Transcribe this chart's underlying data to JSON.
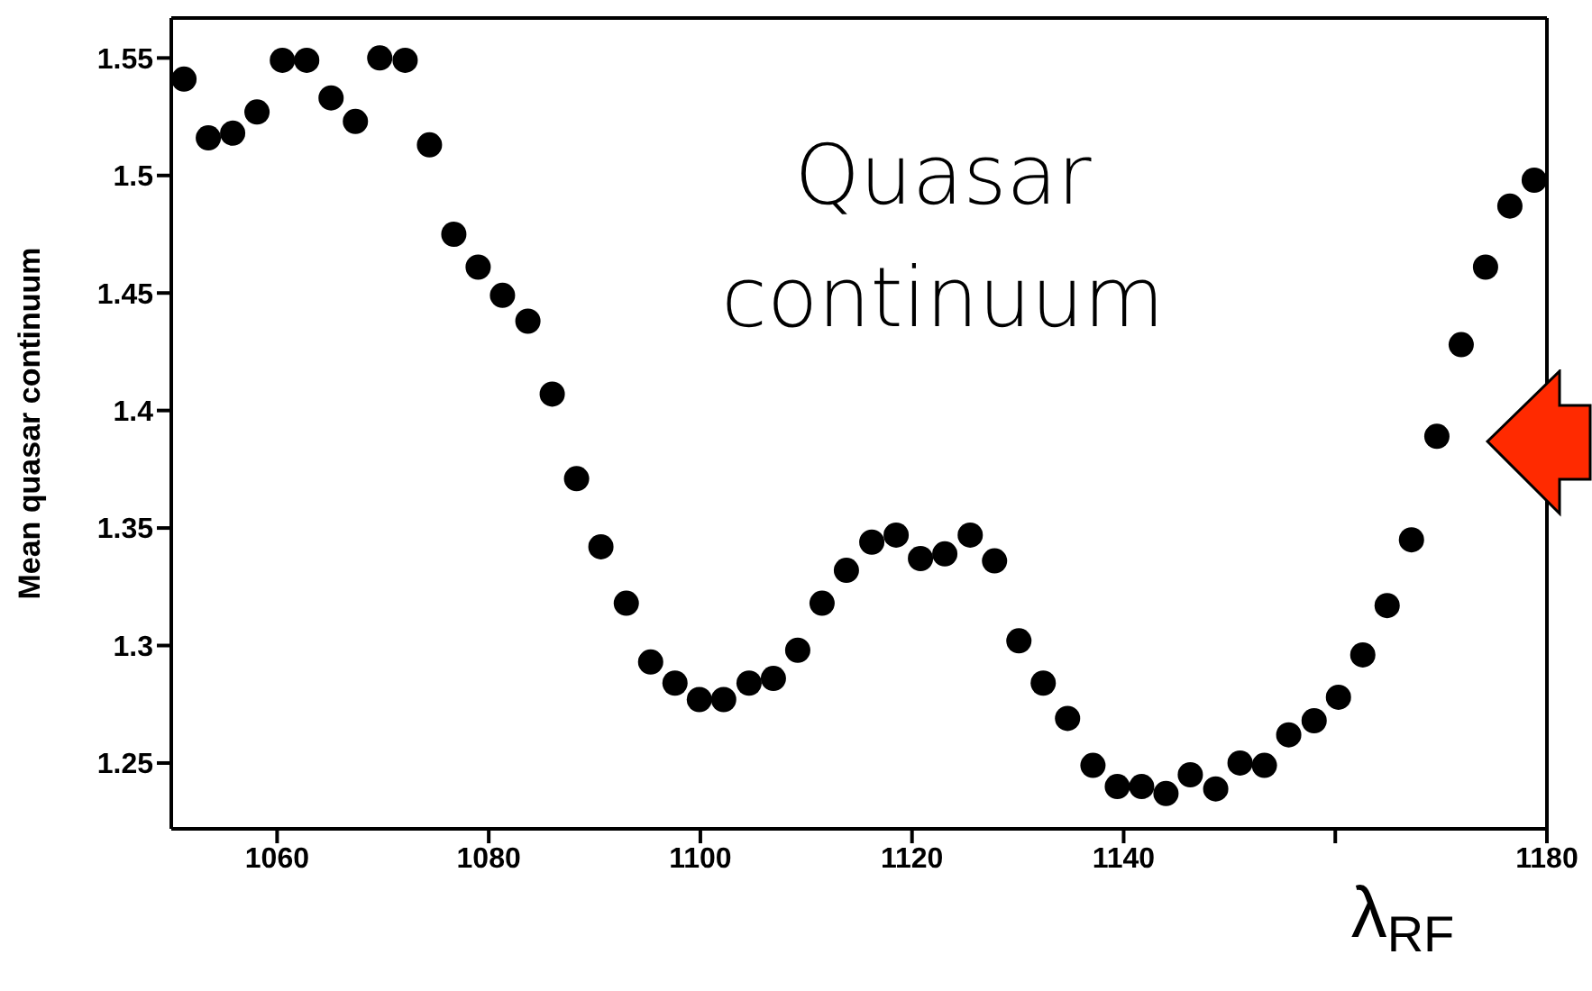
{
  "chart_data": {
    "type": "scatter",
    "xlabel": "λ$_{RF}$",
    "ylabel": "Mean quasar continuum",
    "annotations": [
      "Quasar continuum"
    ],
    "color": "#000000",
    "marker": "circle",
    "x": [
      1051.2,
      1053.5,
      1055.8,
      1058.1,
      1060.5,
      1062.8,
      1065.1,
      1067.4,
      1069.7,
      1072.1,
      1074.4,
      1076.7,
      1079.0,
      1081.3,
      1083.7,
      1086.0,
      1088.3,
      1090.6,
      1093.0,
      1095.3,
      1097.6,
      1099.9,
      1102.2,
      1104.6,
      1106.9,
      1109.2,
      1111.5,
      1113.8,
      1116.2,
      1118.5,
      1120.8,
      1123.1,
      1125.5,
      1127.8,
      1130.1,
      1132.4,
      1134.7,
      1137.1,
      1139.4,
      1141.7,
      1144.0,
      1146.3,
      1148.7,
      1151.0,
      1153.3,
      1155.6,
      1158.0,
      1160.3,
      1162.6,
      1164.9,
      1167.2,
      1169.6,
      1171.9,
      1174.2,
      1176.5,
      1178.8
    ],
    "values": [
      1.541,
      1.516,
      1.518,
      1.527,
      1.549,
      1.549,
      1.533,
      1.523,
      1.55,
      1.549,
      1.513,
      1.475,
      1.461,
      1.449,
      1.438,
      1.407,
      1.371,
      1.342,
      1.318,
      1.293,
      1.284,
      1.277,
      1.277,
      1.284,
      1.286,
      1.298,
      1.318,
      1.332,
      1.344,
      1.347,
      1.337,
      1.339,
      1.347,
      1.336,
      1.302,
      1.284,
      1.269,
      1.249,
      1.24,
      1.24,
      1.237,
      1.245,
      1.239,
      1.25,
      1.249,
      1.262,
      1.268,
      1.278,
      1.296,
      1.317,
      1.345,
      1.389,
      1.428,
      1.461,
      1.487,
      1.498
    ],
    "xlim": [
      1050,
      1180
    ],
    "xticks": [
      1060,
      1080,
      1100,
      1120,
      1140,
      {
        "value": 1160,
        "label": null
      },
      1180
    ],
    "ylim": [
      1.222,
      1.567
    ],
    "yticks": [
      1.25,
      1.3,
      1.35,
      1.4,
      1.45,
      1.5,
      1.55
    ]
  }
}
